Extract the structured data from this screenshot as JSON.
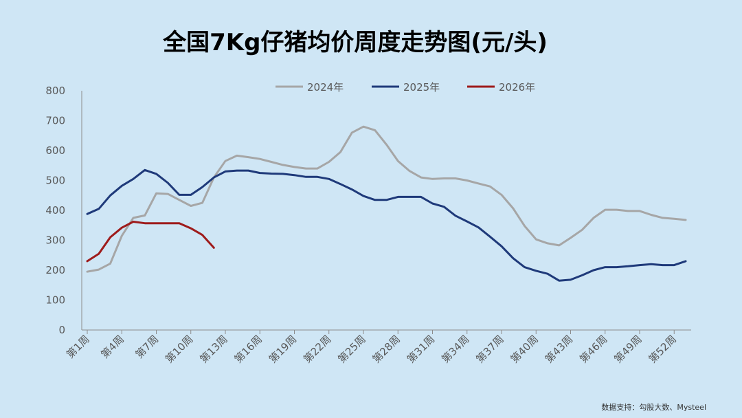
{
  "chart_data": {
    "type": "line",
    "title": "全国7Kg仔猪均价周度走势图(元/头)",
    "source": "数据支持：勾股大数、Mysteel",
    "ylim": [
      0,
      800
    ],
    "yticks": [
      0,
      100,
      200,
      300,
      400,
      500,
      600,
      700,
      800
    ],
    "x_labels": [
      "第1周",
      "第4周",
      "第7周",
      "第10周",
      "第13周",
      "第16周",
      "第19周",
      "第22周",
      "第25周",
      "第28周",
      "第31周",
      "第34周",
      "第37周",
      "第40周",
      "第43周",
      "第46周",
      "第49周",
      "第52周"
    ],
    "x_label_weeks": [
      1,
      4,
      7,
      10,
      13,
      16,
      19,
      22,
      25,
      28,
      31,
      34,
      37,
      40,
      43,
      46,
      49,
      52
    ],
    "x_range": [
      1,
      53
    ],
    "series": [
      {
        "name": "2024年",
        "color": "#a6a6a6",
        "weeks": [
          1,
          2,
          3,
          4,
          5,
          6,
          7,
          8,
          9,
          10,
          11,
          12,
          13,
          14,
          15,
          16,
          17,
          18,
          19,
          20,
          21,
          22,
          23,
          24,
          25,
          26,
          27,
          28,
          29,
          30,
          31,
          32,
          33,
          34,
          35,
          36,
          37,
          38,
          39,
          40,
          41,
          42,
          43,
          44,
          45,
          46,
          47,
          48,
          49,
          50,
          51,
          52,
          53
        ],
        "values": [
          195,
          202,
          222,
          315,
          375,
          383,
          457,
          455,
          435,
          415,
          425,
          510,
          565,
          583,
          578,
          572,
          562,
          552,
          545,
          540,
          540,
          562,
          595,
          660,
          680,
          668,
          620,
          565,
          532,
          510,
          505,
          507,
          507,
          500,
          490,
          480,
          452,
          407,
          348,
          303,
          290,
          283,
          308,
          335,
          375,
          402,
          402,
          398,
          398,
          385,
          375,
          372,
          368
        ]
      },
      {
        "name": "2025年",
        "color": "#1f3a7a",
        "weeks": [
          1,
          2,
          3,
          4,
          5,
          6,
          7,
          8,
          9,
          10,
          11,
          12,
          13,
          14,
          15,
          16,
          17,
          18,
          19,
          20,
          21,
          22,
          23,
          24,
          25,
          26,
          27,
          28,
          29,
          30,
          31,
          32,
          33,
          34,
          35,
          36,
          37,
          38,
          39,
          40,
          41,
          42,
          43,
          44,
          45,
          46,
          47,
          48,
          49,
          50,
          51,
          52,
          53
        ],
        "values": [
          388,
          405,
          450,
          482,
          505,
          535,
          522,
          492,
          452,
          452,
          478,
          510,
          530,
          533,
          533,
          525,
          523,
          522,
          518,
          512,
          512,
          505,
          488,
          470,
          448,
          435,
          435,
          445,
          445,
          445,
          423,
          412,
          382,
          363,
          343,
          312,
          280,
          240,
          210,
          198,
          188,
          165,
          168,
          183,
          200,
          210,
          210,
          213,
          217,
          220,
          217,
          217,
          230
        ]
      },
      {
        "name": "2026年",
        "color": "#9e1b1b",
        "weeks": [
          1,
          2,
          3,
          4,
          5,
          6,
          7,
          8,
          9,
          10,
          11,
          12
        ],
        "values": [
          230,
          255,
          310,
          342,
          362,
          357,
          357,
          357,
          357,
          340,
          318,
          275
        ]
      }
    ]
  }
}
